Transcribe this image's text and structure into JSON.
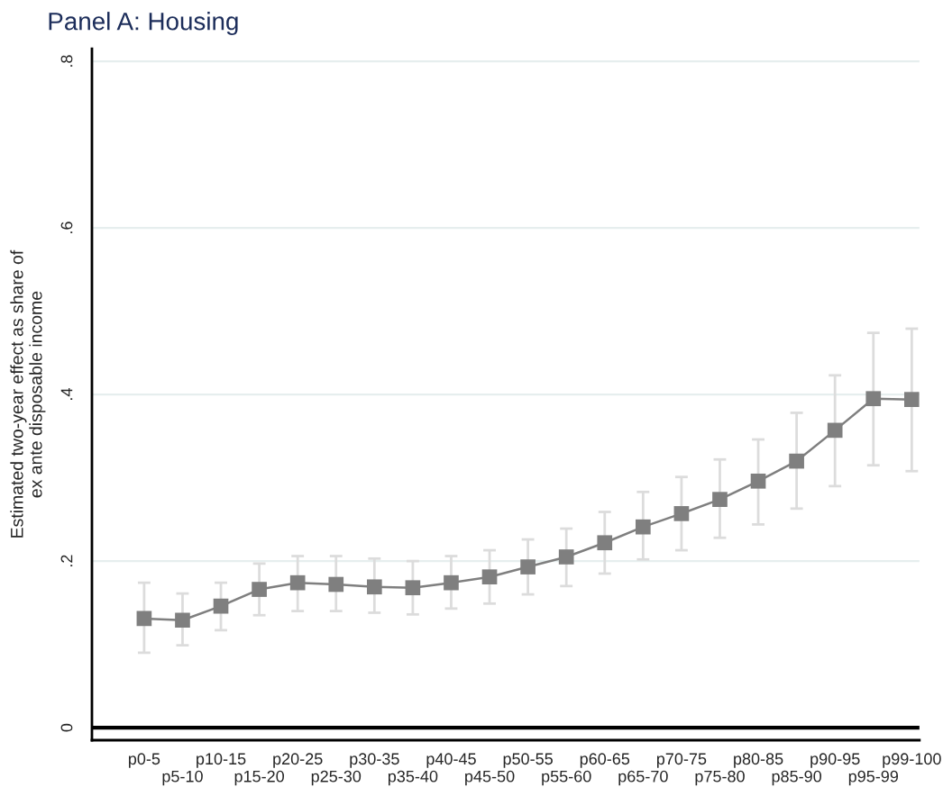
{
  "chart_data": {
    "type": "line",
    "title": "Panel A: Housing",
    "ylabel": "Estimated two-year effect as share of\nex ante disposable income",
    "categories": [
      "p0-5",
      "p5-10",
      "p10-15",
      "p15-20",
      "p20-25",
      "p25-30",
      "p30-35",
      "p35-40",
      "p40-45",
      "p45-50",
      "p50-55",
      "p55-60",
      "p60-65",
      "p65-70",
      "p70-75",
      "p75-80",
      "p80-85",
      "p85-90",
      "p90-95",
      "p95-99",
      "p99-100"
    ],
    "series": [
      {
        "color": "#7f7f7f",
        "values": [
          0.131,
          0.129,
          0.146,
          0.166,
          0.174,
          0.172,
          0.169,
          0.168,
          0.174,
          0.181,
          0.193,
          0.205,
          0.222,
          0.241,
          0.257,
          0.274,
          0.296,
          0.32,
          0.357,
          0.395,
          0.394
        ],
        "errors": [
          [
            0.09,
            0.174
          ],
          [
            0.099,
            0.161
          ],
          [
            0.117,
            0.174
          ],
          [
            0.135,
            0.197
          ],
          [
            0.14,
            0.206
          ],
          [
            0.14,
            0.206
          ],
          [
            0.138,
            0.203
          ],
          [
            0.136,
            0.2
          ],
          [
            0.143,
            0.206
          ],
          [
            0.149,
            0.213
          ],
          [
            0.16,
            0.226
          ],
          [
            0.17,
            0.239
          ],
          [
            0.185,
            0.259
          ],
          [
            0.202,
            0.283
          ],
          [
            0.213,
            0.301
          ],
          [
            0.228,
            0.322
          ],
          [
            0.244,
            0.346
          ],
          [
            0.263,
            0.378
          ],
          [
            0.29,
            0.423
          ],
          [
            0.315,
            0.474
          ],
          [
            0.308,
            0.479
          ]
        ]
      }
    ],
    "ylim": [
      -0.015,
      0.815
    ],
    "yticks": [
      {
        "value": 0,
        "label": "0"
      },
      {
        "value": 0.2,
        "label": ".2"
      },
      {
        "value": 0.4,
        "label": ".4"
      },
      {
        "value": 0.6,
        "label": ".6"
      },
      {
        "value": 0.8,
        "label": ".8"
      }
    ],
    "ref_lines": [
      {
        "axis": "y",
        "value": 0,
        "color": "#000000"
      }
    ],
    "grid": "y",
    "marker": "square",
    "line_style": "solid"
  }
}
